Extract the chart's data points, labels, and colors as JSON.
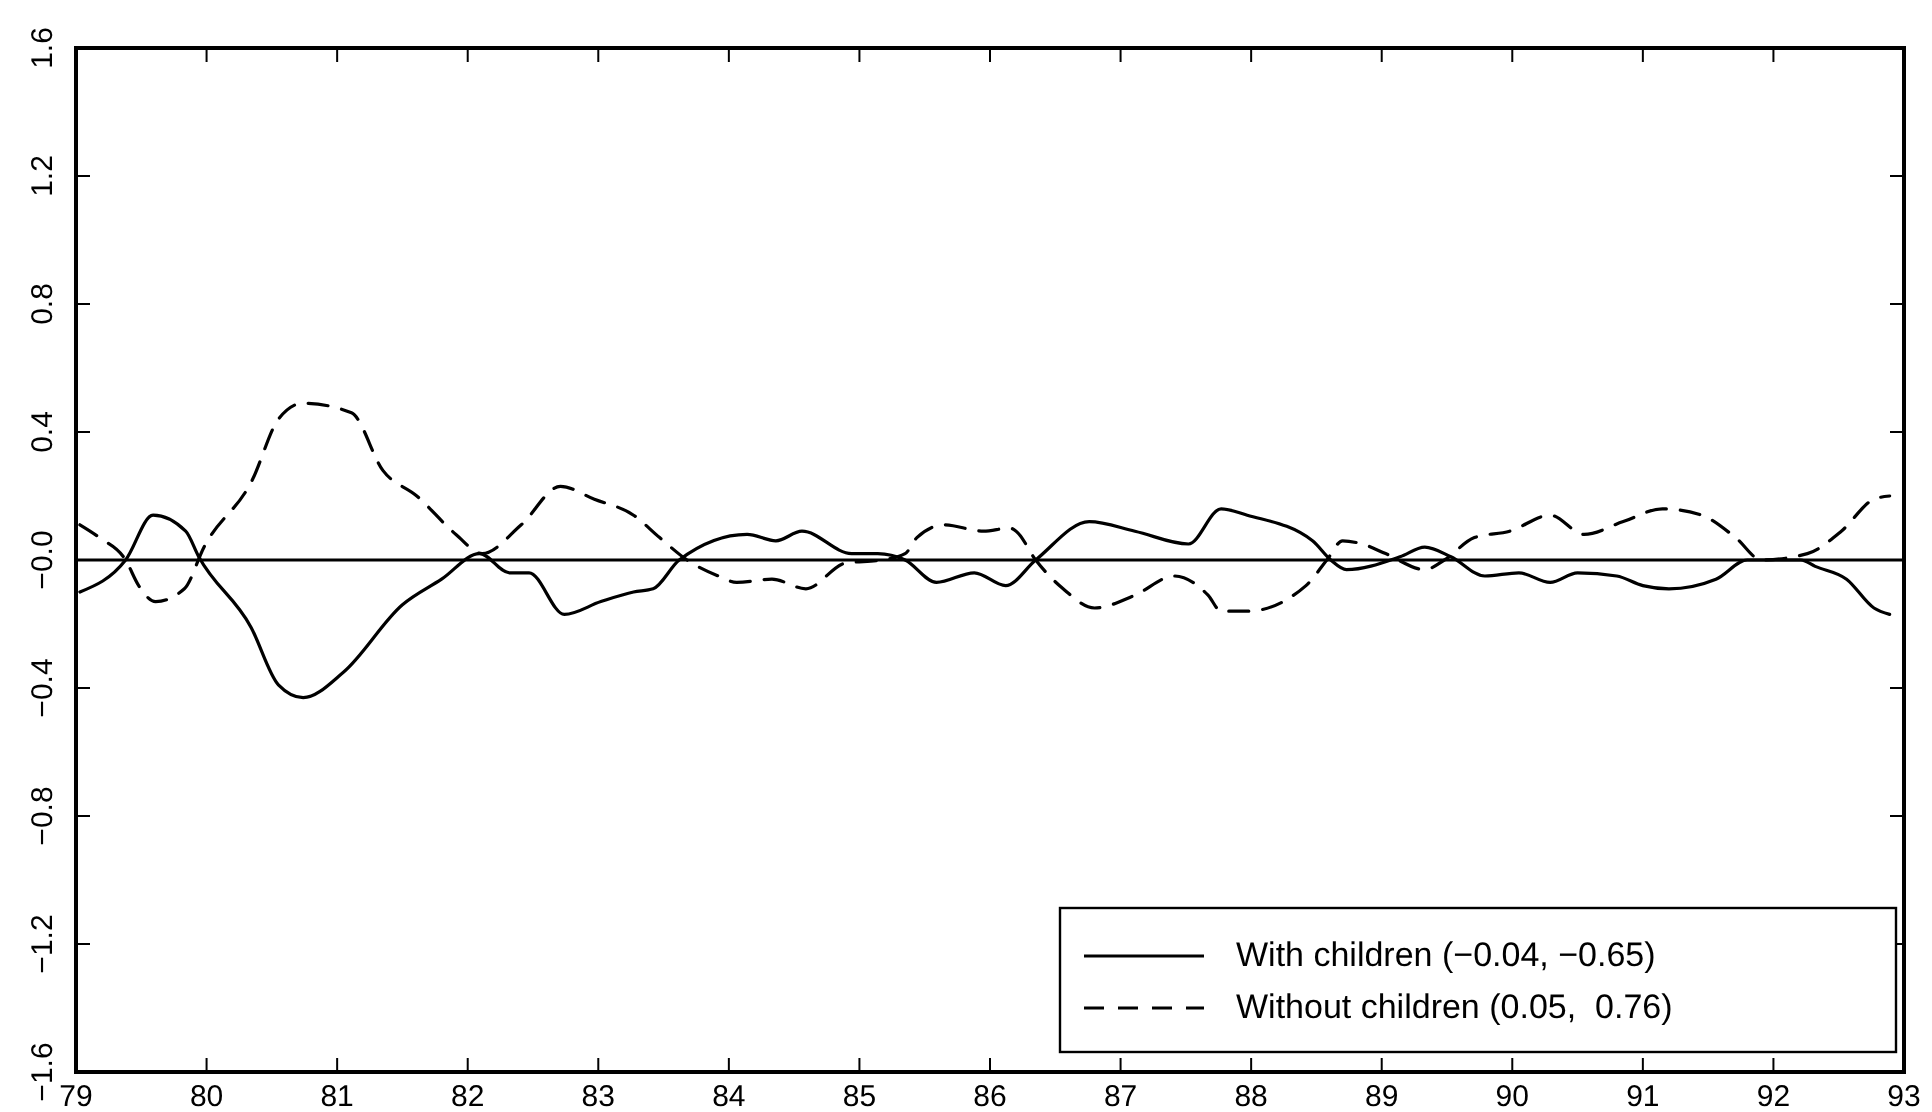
{
  "chart_data": {
    "type": "line",
    "xlim": [
      79,
      93
    ],
    "xticks": [
      79,
      80,
      81,
      82,
      83,
      84,
      85,
      86,
      87,
      88,
      89,
      90,
      91,
      92,
      93
    ],
    "ylim": [
      -1.6,
      1.6
    ],
    "yticks": [
      {
        "value": -1.6,
        "label": "−1.6"
      },
      {
        "value": -1.2,
        "label": "−1.2"
      },
      {
        "value": -0.8,
        "label": "−0.8"
      },
      {
        "value": -0.4,
        "label": "−0.4"
      },
      {
        "value": 0,
        "label": "−0.0"
      },
      0.4,
      0.8,
      1.2,
      1.6
    ],
    "grid": false,
    "legend": "bottom right",
    "marker": "none",
    "ref_lines": [
      {
        "axis": "y",
        "value": 0,
        "color": "#000000"
      }
    ],
    "series": [
      {
        "name": "With children (−0.04, −0.65)",
        "color": "#000000",
        "line_style": "solid",
        "x": [
          79.03,
          79.38,
          79.59,
          79.84,
          79.94,
          80.34,
          80.55,
          80.74,
          81.05,
          81.5,
          81.8,
          82.09,
          82.32,
          82.47,
          82.74,
          83.02,
          83.27,
          83.42,
          83.62,
          84.14,
          84.36,
          84.56,
          84.94,
          85.14,
          85.35,
          85.59,
          85.88,
          86.12,
          86.35,
          86.76,
          87.11,
          87.52,
          87.77,
          87.97,
          88.47,
          88.61,
          88.73,
          89.14,
          89.33,
          89.53,
          89.79,
          90.05,
          90.29,
          90.5,
          90.8,
          91.0,
          91.2,
          91.56,
          91.8,
          92.21,
          92.32,
          92.56,
          92.77,
          92.89
        ],
        "values": [
          -0.1,
          0.0,
          0.14,
          0.09,
          0.01,
          -0.21,
          -0.39,
          -0.43,
          -0.35,
          -0.14,
          -0.06,
          0.02,
          -0.04,
          -0.04,
          -0.17,
          -0.13,
          -0.1,
          -0.09,
          0.0,
          0.08,
          0.06,
          0.09,
          0.02,
          0.02,
          0.0,
          -0.07,
          -0.04,
          -0.08,
          0.0,
          0.12,
          0.09,
          0.05,
          0.16,
          0.14,
          0.06,
          0.0,
          -0.03,
          0.01,
          0.04,
          0.01,
          -0.05,
          -0.04,
          -0.07,
          -0.04,
          -0.05,
          -0.08,
          -0.09,
          -0.06,
          0.0,
          0.0,
          -0.02,
          -0.06,
          -0.15,
          -0.17
        ]
      },
      {
        "name": "Without children (0.05,  0.76)",
        "color": "#000000",
        "line_style": "dashed",
        "x": [
          79.03,
          79.18,
          79.38,
          79.48,
          79.61,
          79.83,
          79.98,
          80.35,
          80.55,
          80.74,
          81.11,
          81.35,
          81.61,
          81.91,
          82.11,
          82.41,
          82.71,
          82.97,
          83.27,
          83.47,
          83.68,
          83.92,
          84.06,
          84.33,
          84.59,
          84.89,
          85.17,
          85.35,
          85.44,
          85.65,
          85.95,
          86.15,
          86.2,
          86.35,
          86.56,
          86.8,
          87.11,
          87.41,
          87.67,
          87.77,
          87.97,
          88.42,
          88.58,
          88.7,
          88.85,
          89.03,
          89.33,
          89.48,
          89.71,
          89.98,
          90.29,
          90.55,
          90.85,
          91.15,
          91.45,
          91.71,
          91.91,
          92.26,
          92.52,
          92.77,
          92.89
        ],
        "values": [
          0.11,
          0.07,
          0.0,
          -0.08,
          -0.13,
          -0.09,
          0.04,
          0.25,
          0.44,
          0.49,
          0.46,
          0.28,
          0.2,
          0.08,
          0.02,
          0.11,
          0.23,
          0.19,
          0.14,
          0.07,
          0.0,
          -0.05,
          -0.07,
          -0.06,
          -0.09,
          -0.01,
          0.0,
          0.02,
          0.07,
          0.11,
          0.09,
          0.1,
          0.09,
          0.0,
          -0.09,
          -0.15,
          -0.11,
          -0.05,
          -0.11,
          -0.16,
          -0.16,
          -0.08,
          0.0,
          0.06,
          0.05,
          0.02,
          -0.03,
          0.0,
          0.07,
          0.09,
          0.14,
          0.08,
          0.12,
          0.16,
          0.14,
          0.07,
          0.0,
          0.02,
          0.09,
          0.19,
          0.2
        ]
      }
    ]
  }
}
